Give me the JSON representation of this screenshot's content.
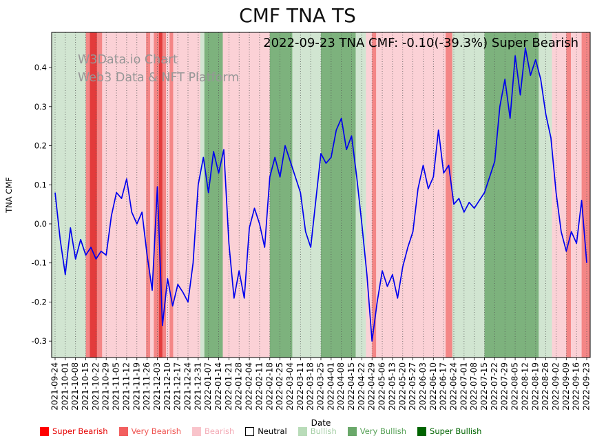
{
  "chart_data": {
    "type": "line",
    "title": "CMF TNA TS",
    "xlabel": "Date",
    "ylabel": "TNA CMF",
    "annotation": "2022-09-23 TNA CMF: -0.10(-39.3%) Super Bearish",
    "watermark_line1": "W3Data.io Chart",
    "watermark_line2": "Web3 Data & NFT Platform",
    "latest": {
      "date": "2022-09-23",
      "ticker": "TNA",
      "metric": "CMF",
      "value": -0.1,
      "change_pct": "-39.3%",
      "sentiment": "Super Bearish"
    },
    "ylim": [
      -0.342,
      0.49
    ],
    "xlim_weeks": [
      0,
      52
    ],
    "grid": "vertical-dotted",
    "line_color": "#0000ee",
    "x_tick_labels": [
      "2021-09-24",
      "2021-10-01",
      "2021-10-08",
      "2021-10-15",
      "2021-10-22",
      "2021-10-29",
      "2021-11-05",
      "2021-11-12",
      "2021-11-19",
      "2021-11-26",
      "2021-12-03",
      "2021-12-10",
      "2021-12-17",
      "2021-12-24",
      "2021-12-31",
      "2022-01-07",
      "2022-01-14",
      "2022-01-21",
      "2022-01-28",
      "2022-02-04",
      "2022-02-11",
      "2022-02-18",
      "2022-02-25",
      "2022-03-04",
      "2022-03-11",
      "2022-03-18",
      "2022-03-25",
      "2022-04-01",
      "2022-04-08",
      "2022-04-15",
      "2022-04-22",
      "2022-04-29",
      "2022-05-06",
      "2022-05-13",
      "2022-05-20",
      "2022-05-27",
      "2022-06-03",
      "2022-06-10",
      "2022-06-17",
      "2022-06-24",
      "2022-07-01",
      "2022-07-08",
      "2022-07-15",
      "2022-07-22",
      "2022-07-29",
      "2022-08-05",
      "2022-08-12",
      "2022-08-19",
      "2022-08-26",
      "2022-09-02",
      "2022-09-09",
      "2022-09-16",
      "2022-09-23"
    ],
    "y_ticks": [
      {
        "value": 0.4,
        "label": "0.4"
      },
      {
        "value": 0.3,
        "label": "0.3"
      },
      {
        "value": 0.2,
        "label": "0.2"
      },
      {
        "value": 0.1,
        "label": "0.1"
      },
      {
        "value": 0.0,
        "label": "0.0"
      },
      {
        "value": -0.1,
        "label": "-0.1"
      },
      {
        "value": -0.2,
        "label": "-0.2"
      },
      {
        "value": -0.3,
        "label": "-0.3"
      }
    ],
    "series": [
      {
        "name": "TNA CMF",
        "color": "#0000ee",
        "points_per_week": 2,
        "values": [
          0.08,
          -0.04,
          -0.13,
          -0.01,
          -0.09,
          -0.04,
          -0.08,
          -0.06,
          -0.09,
          -0.07,
          -0.08,
          0.02,
          0.08,
          0.065,
          0.115,
          0.03,
          0.0,
          0.03,
          -0.08,
          -0.17,
          0.095,
          -0.26,
          -0.14,
          -0.21,
          -0.155,
          -0.175,
          -0.2,
          -0.1,
          0.1,
          0.17,
          0.08,
          0.185,
          0.13,
          0.19,
          -0.05,
          -0.19,
          -0.12,
          -0.19,
          -0.01,
          0.04,
          0.0,
          -0.06,
          0.12,
          0.17,
          0.12,
          0.2,
          0.16,
          0.12,
          0.08,
          -0.02,
          -0.06,
          0.06,
          0.18,
          0.155,
          0.17,
          0.24,
          0.27,
          0.19,
          0.225,
          0.12,
          0.0,
          -0.13,
          -0.3,
          -0.2,
          -0.12,
          -0.16,
          -0.13,
          -0.19,
          -0.11,
          -0.06,
          -0.02,
          0.09,
          0.15,
          0.09,
          0.12,
          0.24,
          0.13,
          0.15,
          0.05,
          0.065,
          0.03,
          0.055,
          0.04,
          0.06,
          0.08,
          0.12,
          0.16,
          0.3,
          0.37,
          0.27,
          0.43,
          0.33,
          0.45,
          0.38,
          0.42,
          0.37,
          0.28,
          0.22,
          0.08,
          -0.02,
          -0.07,
          -0.02,
          -0.05,
          0.06,
          -0.1
        ]
      }
    ],
    "bands": [
      [
        -0.35,
        3.0,
        "bullish"
      ],
      [
        3.0,
        3.4,
        "very_bearish"
      ],
      [
        3.4,
        4.1,
        "super_bearish"
      ],
      [
        4.1,
        4.6,
        "very_bearish"
      ],
      [
        4.6,
        8.9,
        "bearish"
      ],
      [
        8.9,
        9.3,
        "very_bearish"
      ],
      [
        9.3,
        9.65,
        "bearish"
      ],
      [
        9.65,
        10.15,
        "very_bearish"
      ],
      [
        10.15,
        10.5,
        "super_bearish"
      ],
      [
        10.5,
        10.85,
        "very_bearish"
      ],
      [
        10.85,
        11.2,
        "bearish"
      ],
      [
        11.2,
        11.55,
        "very_bearish"
      ],
      [
        11.55,
        14.2,
        "bearish"
      ],
      [
        14.2,
        14.6,
        "bullish"
      ],
      [
        14.6,
        16.4,
        "very_bullish"
      ],
      [
        16.4,
        21.0,
        "bearish"
      ],
      [
        21.0,
        23.2,
        "very_bullish"
      ],
      [
        23.2,
        26.0,
        "bullish"
      ],
      [
        26.0,
        29.4,
        "very_bullish"
      ],
      [
        29.4,
        30.4,
        "bullish"
      ],
      [
        30.4,
        31.0,
        "bearish"
      ],
      [
        31.0,
        31.4,
        "very_bearish"
      ],
      [
        31.4,
        38.2,
        "bearish"
      ],
      [
        38.2,
        38.85,
        "very_bearish"
      ],
      [
        38.85,
        42.0,
        "bullish"
      ],
      [
        42.0,
        47.3,
        "very_bullish"
      ],
      [
        47.3,
        48.6,
        "bullish"
      ],
      [
        48.6,
        50.0,
        "bearish"
      ],
      [
        50.0,
        50.45,
        "very_bearish"
      ],
      [
        50.45,
        51.5,
        "bearish"
      ],
      [
        51.5,
        52.35,
        "very_bearish"
      ]
    ],
    "band_colors": {
      "super_bearish": "rgba(220,10,10,0.80)",
      "very_bearish": "rgba(237,60,60,0.62)",
      "bearish": "rgba(243,120,135,0.34)",
      "neutral": "rgba(255,255,255,0)",
      "bullish": "rgba(85,160,85,0.27)",
      "very_bullish": "rgba(45,130,45,0.62)",
      "super_bullish": "rgba(0,100,0,0.80)"
    },
    "legend": [
      {
        "label": "Super Bearish",
        "color": "#ff0000",
        "text_color": "#e60000"
      },
      {
        "label": "Very Bearish",
        "color": "#f25f5f",
        "text_color": "#ef5350"
      },
      {
        "label": "Bearish",
        "color": "#f9c4cb",
        "text_color": "#f3aab5"
      },
      {
        "label": "Neutral",
        "color": "#ffffff",
        "text_color": "#000000"
      },
      {
        "label": "Bullish",
        "color": "#b9dcb9",
        "text_color": "#a5cfa5"
      },
      {
        "label": "Very Bullish",
        "color": "#6aa86a",
        "text_color": "#55a055"
      },
      {
        "label": "Super Bullish",
        "color": "#006400",
        "text_color": "#006400"
      }
    ]
  }
}
